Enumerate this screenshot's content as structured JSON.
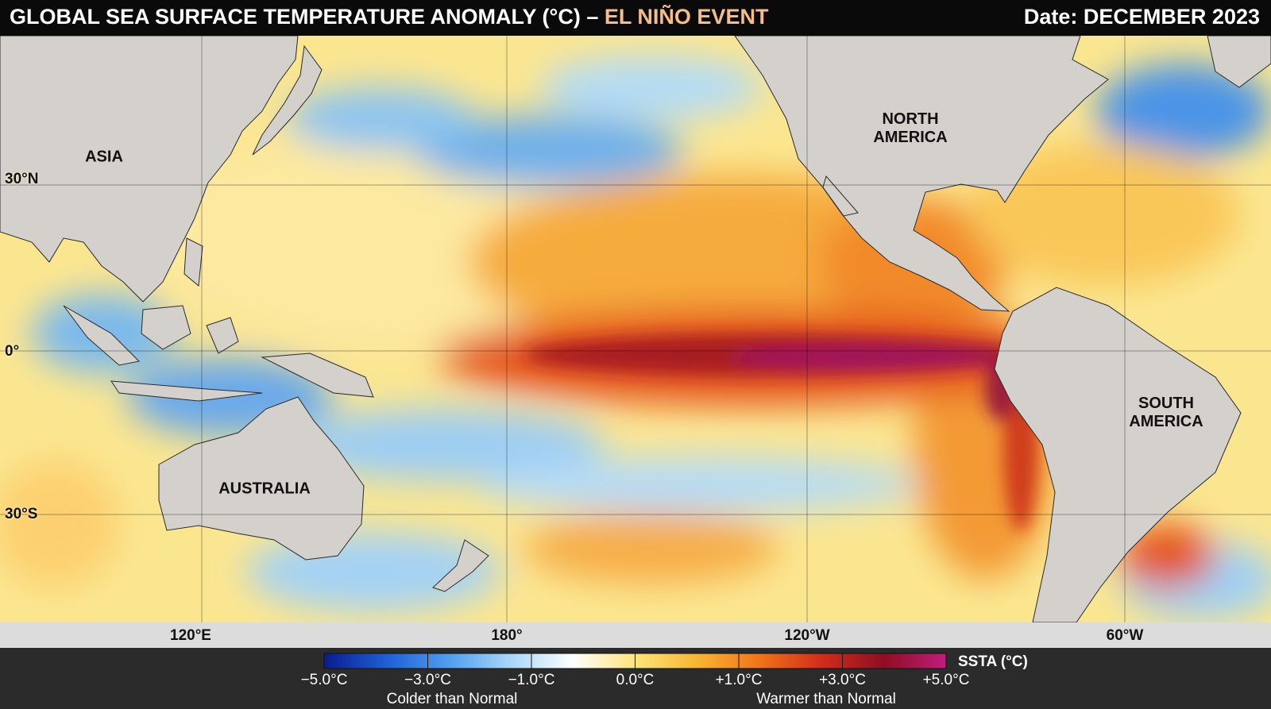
{
  "header": {
    "title": "GLOBAL SEA SURFACE TEMPERATURE ANOMALY (°C)",
    "separator": "–",
    "highlight": "EL NIÑO EVENT",
    "date": "Date: DECEMBER 2023"
  },
  "map": {
    "regions": [
      "ASIA",
      "NORTH\nAMERICA",
      "AUSTRALIA",
      "SOUTH\nAMERICA"
    ],
    "lat_labels": [
      "30°N",
      "0°",
      "30°S"
    ],
    "lon_labels": [
      "120°E",
      "180°",
      "120°W",
      "60°W"
    ]
  },
  "colorbar": {
    "title": "SSTA (°C)",
    "ticks": [
      "−5.0°C",
      "−3.0°C",
      "−1.0°C",
      "0.0°C",
      "+1.0°C",
      "+3.0°C",
      "+5.0°C"
    ],
    "colors": [
      "#0b1c8c",
      "#1e5fd4",
      "#4f9eee",
      "#a9d6f8",
      "#ffffff",
      "#fde47a",
      "#f8b534",
      "#f0741a",
      "#d22c1a",
      "#8d0f22",
      "#c21c7c"
    ],
    "captions": [
      "Colder than Normal",
      "Warmer than Normal"
    ]
  }
}
